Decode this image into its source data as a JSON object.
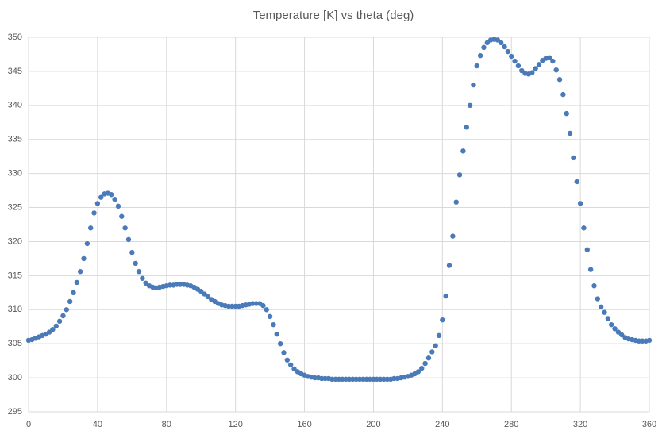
{
  "chart_data": {
    "type": "scatter",
    "title": "Temperature [K] vs theta (deg)",
    "x": [
      0,
      2,
      4,
      6,
      8,
      10,
      12,
      14,
      16,
      18,
      20,
      22,
      24,
      26,
      28,
      30,
      32,
      34,
      36,
      38,
      40,
      42,
      44,
      46,
      48,
      50,
      52,
      54,
      56,
      58,
      60,
      62,
      64,
      66,
      68,
      70,
      72,
      74,
      76,
      78,
      80,
      82,
      84,
      86,
      88,
      90,
      92,
      94,
      96,
      98,
      100,
      102,
      104,
      106,
      108,
      110,
      112,
      114,
      116,
      118,
      120,
      122,
      124,
      126,
      128,
      130,
      132,
      134,
      136,
      138,
      140,
      142,
      144,
      146,
      148,
      150,
      152,
      154,
      156,
      158,
      160,
      162,
      164,
      166,
      168,
      170,
      172,
      174,
      176,
      178,
      180,
      182,
      184,
      186,
      188,
      190,
      192,
      194,
      196,
      198,
      200,
      202,
      204,
      206,
      208,
      210,
      212,
      214,
      216,
      218,
      220,
      222,
      224,
      226,
      228,
      230,
      232,
      234,
      236,
      238,
      240,
      242,
      244,
      246,
      248,
      250,
      252,
      254,
      256,
      258,
      260,
      262,
      264,
      266,
      268,
      270,
      272,
      274,
      276,
      278,
      280,
      282,
      284,
      286,
      288,
      290,
      292,
      294,
      296,
      298,
      300,
      302,
      304,
      306,
      308,
      310,
      312,
      314,
      316,
      318,
      320,
      322,
      324,
      326,
      328,
      330,
      332,
      334,
      336,
      338,
      340,
      342,
      344,
      346,
      348,
      350,
      352,
      354,
      356,
      358,
      360
    ],
    "values": [
      305.5,
      305.6,
      305.8,
      306.0,
      306.2,
      306.4,
      306.7,
      307.1,
      307.6,
      308.3,
      309.1,
      310.0,
      311.2,
      312.5,
      314.0,
      315.6,
      317.5,
      319.7,
      322.0,
      324.2,
      325.6,
      326.5,
      327.0,
      327.1,
      326.9,
      326.2,
      325.2,
      323.7,
      322.0,
      320.3,
      318.4,
      316.8,
      315.6,
      314.6,
      313.9,
      313.5,
      313.3,
      313.2,
      313.3,
      313.4,
      313.5,
      313.6,
      313.6,
      313.7,
      313.7,
      313.7,
      313.6,
      313.5,
      313.3,
      313.0,
      312.7,
      312.3,
      311.9,
      311.5,
      311.2,
      310.9,
      310.7,
      310.6,
      310.5,
      310.5,
      310.5,
      310.5,
      310.6,
      310.7,
      310.8,
      310.9,
      310.9,
      310.9,
      310.6,
      310.0,
      309.0,
      307.8,
      306.4,
      305.0,
      303.7,
      302.6,
      301.9,
      301.3,
      300.9,
      300.6,
      300.4,
      300.2,
      300.1,
      300.0,
      300.0,
      299.9,
      299.9,
      299.9,
      299.8,
      299.8,
      299.8,
      299.8,
      299.8,
      299.8,
      299.8,
      299.8,
      299.8,
      299.8,
      299.8,
      299.8,
      299.8,
      299.8,
      299.8,
      299.8,
      299.8,
      299.8,
      299.9,
      299.9,
      300.0,
      300.1,
      300.2,
      300.4,
      300.6,
      300.9,
      301.4,
      302.1,
      302.9,
      303.8,
      304.7,
      306.2,
      308.5,
      312.0,
      316.5,
      320.8,
      325.8,
      329.8,
      333.3,
      336.8,
      340.0,
      343.0,
      345.8,
      347.3,
      348.5,
      349.2,
      349.6,
      349.7,
      349.6,
      349.2,
      348.6,
      347.9,
      347.2,
      346.5,
      345.8,
      345.1,
      344.7,
      344.6,
      344.8,
      345.4,
      346.0,
      346.6,
      346.9,
      347.0,
      346.5,
      345.2,
      343.8,
      341.6,
      338.8,
      335.9,
      332.3,
      328.8,
      325.6,
      322.0,
      318.8,
      315.9,
      313.5,
      311.6,
      310.4,
      309.6,
      308.7,
      307.8,
      307.2,
      306.7,
      306.3,
      305.9,
      305.7,
      305.6,
      305.5,
      305.4,
      305.4,
      305.4,
      305.5
    ],
    "color": "#4a7ab8",
    "xlim": [
      0,
      360
    ],
    "xticks": [
      0,
      40,
      80,
      120,
      160,
      200,
      240,
      280,
      320,
      360
    ],
    "ylim": [
      295,
      350
    ],
    "yticks": [
      295,
      300,
      305,
      310,
      315,
      320,
      325,
      330,
      335,
      340,
      345,
      350
    ],
    "grid": true
  }
}
